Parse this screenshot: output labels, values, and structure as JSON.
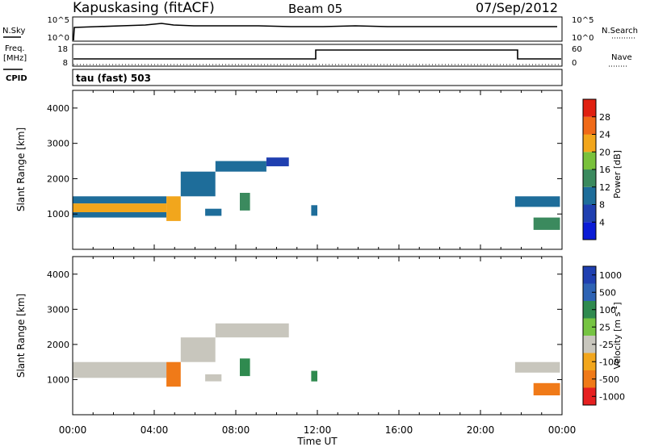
{
  "header": {
    "station": "Kapuskasing (fitACF)",
    "beam": "Beam 05",
    "date": "07/Sep/2012"
  },
  "strips": {
    "nsky_label": "N.Sky",
    "nsky_ticks": [
      "10^5",
      "10^0"
    ],
    "nsearch_label": "N.Search",
    "nsearch_ticks": [
      "10^5",
      "10^0"
    ],
    "freq_label_1": "Freq.",
    "freq_label_2": "[MHz]",
    "freq_ticks": [
      "18",
      "8"
    ],
    "nave_label": "Nave",
    "nave_ticks": [
      "60",
      "0"
    ],
    "cpid_label": "CPID",
    "cpid_text": "tau (fast) 503"
  },
  "colors": {
    "power_scale": [
      "#0a1bd6",
      "#1f3fb0",
      "#1e6d9a",
      "#3b8a5e",
      "#79c13b",
      "#f2a61c",
      "#f06a18",
      "#e02010"
    ],
    "velocity_scale": [
      "#1f3fb0",
      "#2e63b4",
      "#2f8a4f",
      "#76c442",
      "#c8c6bd",
      "#f2a61c",
      "#f07a18",
      "#e62020"
    ]
  },
  "chart_data": [
    {
      "type": "heatmap",
      "panel": "power",
      "ylabel": "Slant Range [km]",
      "ylim": [
        0,
        4500
      ],
      "yticks": [
        "1000",
        "2000",
        "3000",
        "4000"
      ],
      "xlim": [
        0,
        24
      ],
      "colorbar_label": "Power [dB]",
      "colorbar_ticks": [
        "4",
        "8",
        "12",
        "16",
        "20",
        "24",
        "28"
      ],
      "colorbar_range": [
        0,
        32
      ],
      "features": [
        {
          "t0": 0.0,
          "t1": 4.6,
          "r0": 1050,
          "r1": 1300,
          "value": 22
        },
        {
          "t0": 0.0,
          "t1": 4.6,
          "r0": 1300,
          "r1": 1500,
          "value": 9
        },
        {
          "t0": 0.0,
          "t1": 4.6,
          "r0": 900,
          "r1": 1050,
          "value": 8
        },
        {
          "t0": 4.6,
          "t1": 5.3,
          "r0": 800,
          "r1": 1500,
          "value": 20
        },
        {
          "t0": 5.3,
          "t1": 7.0,
          "r0": 1500,
          "r1": 2200,
          "value": 9
        },
        {
          "t0": 7.0,
          "t1": 9.5,
          "r0": 2200,
          "r1": 2500,
          "value": 9
        },
        {
          "t0": 9.5,
          "t1": 10.6,
          "r0": 2350,
          "r1": 2600,
          "value": 5
        },
        {
          "t0": 6.5,
          "t1": 7.3,
          "r0": 950,
          "r1": 1150,
          "value": 9
        },
        {
          "t0": 8.2,
          "t1": 8.7,
          "r0": 1100,
          "r1": 1600,
          "value": 12
        },
        {
          "t0": 11.7,
          "t1": 12.0,
          "r0": 950,
          "r1": 1250,
          "value": 11
        },
        {
          "t0": 21.7,
          "t1": 23.9,
          "r0": 1200,
          "r1": 1500,
          "value": 8
        },
        {
          "t0": 22.6,
          "t1": 23.9,
          "r0": 550,
          "r1": 900,
          "value": 12
        }
      ]
    },
    {
      "type": "heatmap",
      "panel": "velocity",
      "ylabel": "Slant Range [km]",
      "ylim": [
        0,
        4500
      ],
      "yticks": [
        "1000",
        "2000",
        "3000",
        "4000"
      ],
      "xlim": [
        0,
        24
      ],
      "xticks": [
        "00:00",
        "04:00",
        "08:00",
        "12:00",
        "16:00",
        "20:00",
        "00:00"
      ],
      "xlabel": "Time UT",
      "colorbar_label": "Velocity [m s^-1]",
      "colorbar_ticks": [
        "1000",
        "500",
        "100",
        "25",
        "-25",
        "-100",
        "-500",
        "-1000"
      ],
      "features": [
        {
          "t0": 0.0,
          "t1": 4.6,
          "r0": 1050,
          "r1": 1500,
          "value": 0
        },
        {
          "t0": 4.6,
          "t1": 5.3,
          "r0": 800,
          "r1": 1500,
          "value": -300
        },
        {
          "t0": 5.3,
          "t1": 7.0,
          "r0": 1500,
          "r1": 2200,
          "value": 0
        },
        {
          "t0": 7.0,
          "t1": 10.6,
          "r0": 2200,
          "r1": 2600,
          "value": 0
        },
        {
          "t0": 6.5,
          "t1": 7.3,
          "r0": 950,
          "r1": 1150,
          "value": 0
        },
        {
          "t0": 8.2,
          "t1": 8.7,
          "r0": 1100,
          "r1": 1600,
          "value": 200
        },
        {
          "t0": 11.7,
          "t1": 12.0,
          "r0": 950,
          "r1": 1250,
          "value": 200
        },
        {
          "t0": 21.7,
          "t1": 23.9,
          "r0": 1200,
          "r1": 1500,
          "value": 0
        },
        {
          "t0": 22.6,
          "t1": 23.9,
          "r0": 550,
          "r1": 900,
          "value": -300
        }
      ]
    }
  ]
}
